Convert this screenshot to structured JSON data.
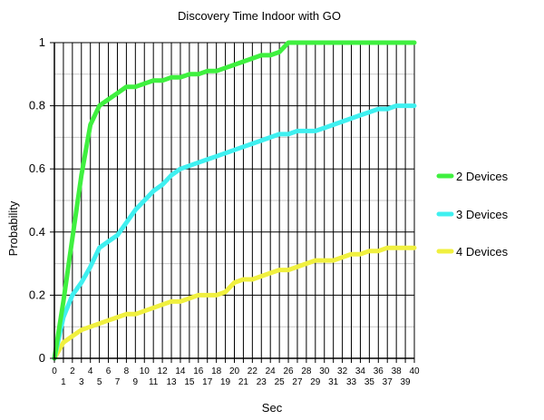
{
  "chart_data": {
    "type": "line",
    "title": "Discovery Time Indoor with GO",
    "xlabel": "Sec",
    "ylabel": "Probability",
    "xlim": [
      0,
      40
    ],
    "ylim": [
      0,
      1
    ],
    "grid": true,
    "legend_position": "right",
    "yticks": [
      "0",
      "0.2",
      "0.4",
      "0.6",
      "0.8",
      "1"
    ],
    "xticks": [
      "0",
      "1",
      "2",
      "3",
      "4",
      "5",
      "6",
      "7",
      "8",
      "9",
      "10",
      "11",
      "12",
      "13",
      "14",
      "15",
      "16",
      "17",
      "18",
      "19",
      "20",
      "21",
      "22",
      "23",
      "24",
      "25",
      "26",
      "27",
      "28",
      "29",
      "30",
      "31",
      "32",
      "33",
      "34",
      "35",
      "36",
      "37",
      "38",
      "39",
      "40"
    ],
    "x": [
      0,
      1,
      2,
      3,
      4,
      5,
      6,
      7,
      8,
      9,
      10,
      11,
      12,
      13,
      14,
      15,
      16,
      17,
      18,
      19,
      20,
      21,
      22,
      23,
      24,
      25,
      26,
      27,
      28,
      29,
      30,
      31,
      32,
      33,
      34,
      35,
      36,
      37,
      38,
      39,
      40
    ],
    "series": [
      {
        "name": "2 Devices",
        "color": "#3ff03f",
        "values": [
          0,
          0.18,
          0.38,
          0.58,
          0.74,
          0.8,
          0.82,
          0.84,
          0.86,
          0.86,
          0.87,
          0.88,
          0.88,
          0.89,
          0.89,
          0.9,
          0.9,
          0.91,
          0.91,
          0.92,
          0.93,
          0.94,
          0.95,
          0.96,
          0.96,
          0.97,
          1,
          1,
          1,
          1,
          1,
          1,
          1,
          1,
          1,
          1,
          1,
          1,
          1,
          1,
          1
        ]
      },
      {
        "name": "3 Devices",
        "color": "#3ff0f0",
        "values": [
          0,
          0.13,
          0.2,
          0.24,
          0.29,
          0.35,
          0.37,
          0.39,
          0.43,
          0.47,
          0.5,
          0.53,
          0.55,
          0.58,
          0.6,
          0.61,
          0.62,
          0.63,
          0.64,
          0.65,
          0.66,
          0.67,
          0.68,
          0.69,
          0.7,
          0.71,
          0.71,
          0.72,
          0.72,
          0.72,
          0.73,
          0.74,
          0.75,
          0.76,
          0.77,
          0.78,
          0.79,
          0.79,
          0.8,
          0.8,
          0.8
        ]
      },
      {
        "name": "4 Devices",
        "color": "#f0f03f",
        "values": [
          0,
          0.05,
          0.07,
          0.09,
          0.1,
          0.11,
          0.12,
          0.13,
          0.14,
          0.14,
          0.15,
          0.16,
          0.17,
          0.18,
          0.18,
          0.19,
          0.2,
          0.2,
          0.2,
          0.21,
          0.24,
          0.25,
          0.25,
          0.26,
          0.27,
          0.28,
          0.28,
          0.29,
          0.3,
          0.31,
          0.31,
          0.31,
          0.32,
          0.33,
          0.33,
          0.34,
          0.34,
          0.35,
          0.35,
          0.35,
          0.35
        ]
      }
    ]
  }
}
